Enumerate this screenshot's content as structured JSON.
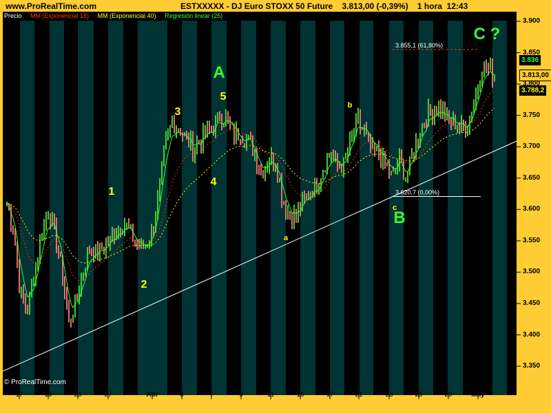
{
  "header": {
    "site": "www.ProRealTime.com",
    "title": "ESTXXXXX - DJ Euro STOXX 50 Future    3.813,00 (-0,39%)    1 hora  12:43"
  },
  "legend": [
    {
      "label": "Precio",
      "color": "#ffffff"
    },
    {
      "label": "MM (Exponencial 18)",
      "color": "#ff3300"
    },
    {
      "label": "MM (Exponencial 40)",
      "color": "#ffff00"
    },
    {
      "label": "Regresión linear (25)",
      "color": "#33ff33"
    }
  ],
  "copyright": "© ProRealTime.com",
  "price_boxes": {
    "regression": "3.836",
    "current": "3.813,00",
    "ema40": "3.788,2"
  },
  "colors": {
    "background": "#ffcc33",
    "stripe": "#003333",
    "plot": "#000000",
    "up": "#44cc33",
    "down": "#e07070",
    "wave_green": "#33ff33",
    "wave_yellow": "#ffff00"
  },
  "chart_data": {
    "type": "candlestick",
    "ylim": [
      3.33,
      3.92
    ],
    "yticks": [
      "3.900",
      "3.850",
      "3.800",
      "3.750",
      "3.700",
      "3.650",
      "3.600",
      "3.550",
      "3.500",
      "3.450",
      "3.400",
      "3.350"
    ],
    "ytick_values": [
      3.9,
      3.85,
      3.8,
      3.75,
      3.7,
      3.65,
      3.6,
      3.55,
      3.5,
      3.45,
      3.4,
      3.35
    ],
    "xticks": [
      "17",
      "19",
      "25",
      "27",
      "Abr",
      "3",
      "7",
      "9",
      "11",
      "15",
      "17",
      "21",
      "23",
      "25",
      "29",
      "May"
    ],
    "price_path": [
      3.61,
      3.57,
      3.46,
      3.44,
      3.5,
      3.56,
      3.6,
      3.56,
      3.5,
      3.42,
      3.45,
      3.5,
      3.54,
      3.53,
      3.54,
      3.55,
      3.57,
      3.58,
      3.56,
      3.54,
      3.54,
      3.56,
      3.62,
      3.7,
      3.74,
      3.73,
      3.71,
      3.7,
      3.71,
      3.72,
      3.73,
      3.75,
      3.74,
      3.72,
      3.72,
      3.71,
      3.69,
      3.66,
      3.68,
      3.68,
      3.62,
      3.59,
      3.59,
      3.61,
      3.63,
      3.64,
      3.67,
      3.69,
      3.67,
      3.67,
      3.71,
      3.74,
      3.72,
      3.69,
      3.69,
      3.67,
      3.65,
      3.68,
      3.65,
      3.69,
      3.73,
      3.75,
      3.76,
      3.76,
      3.74,
      3.74,
      3.73,
      3.74,
      3.78,
      3.83,
      3.82,
      3.815
    ],
    "fibonacci": [
      {
        "label": "3.855,1 (61,80%)",
        "value": 3.8551,
        "color": "#ff3333"
      },
      {
        "label": "3.620,7 (0,00%)",
        "value": 3.6207,
        "color": "#ffffff"
      }
    ],
    "trendline": {
      "from": 3.342,
      "to": 3.709
    },
    "wave_labels": [
      {
        "text": "1",
        "color": "#ffff00"
      },
      {
        "text": "2",
        "color": "#ffff00"
      },
      {
        "text": "3",
        "color": "#ffff00"
      },
      {
        "text": "4",
        "color": "#ffff00"
      },
      {
        "text": "5",
        "color": "#ffff00"
      },
      {
        "text": "A",
        "color": "#33ff33"
      },
      {
        "text": "a",
        "color": "#ffff00"
      },
      {
        "text": "b",
        "color": "#ffff00"
      },
      {
        "text": "c",
        "color": "#ffff00"
      },
      {
        "text": "B",
        "color": "#33ff33"
      },
      {
        "text": "C ?",
        "color": "#33ff33"
      }
    ]
  }
}
